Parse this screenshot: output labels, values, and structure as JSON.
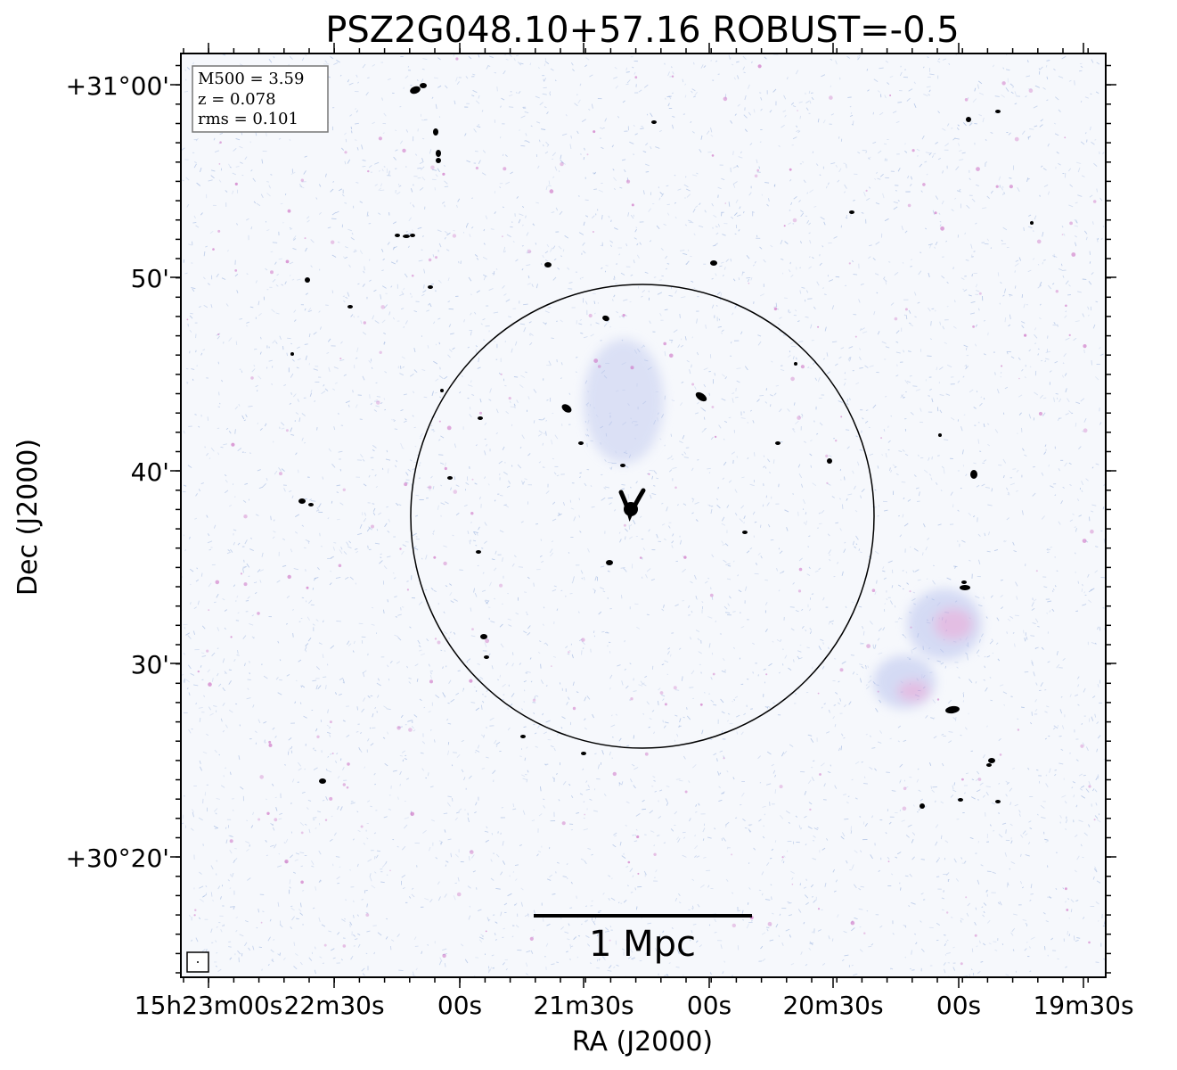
{
  "chart_data": {
    "type": "image",
    "title": "PSZ2G048.10+57.16 ROBUST=-0.5",
    "xlabel": "RA (J2000)",
    "ylabel": "Dec (J2000)",
    "x_ticks": [
      "15h23m00s",
      "22m30s",
      "00s",
      "21m30s",
      "00s",
      "20m30s",
      "00s",
      "19m30s"
    ],
    "y_ticks": [
      "+31°00'",
      "50'",
      "40'",
      "30'",
      "+30°20'"
    ],
    "info_box": [
      "M500 = 3.59",
      "z = 0.078",
      "rms = 0.101"
    ],
    "scalebar_label": "1 Mpc",
    "colors": {
      "noise": "#9fb6e0",
      "diffuse": "#d07ac8",
      "source": "#000000",
      "circle": "#000000"
    }
  }
}
